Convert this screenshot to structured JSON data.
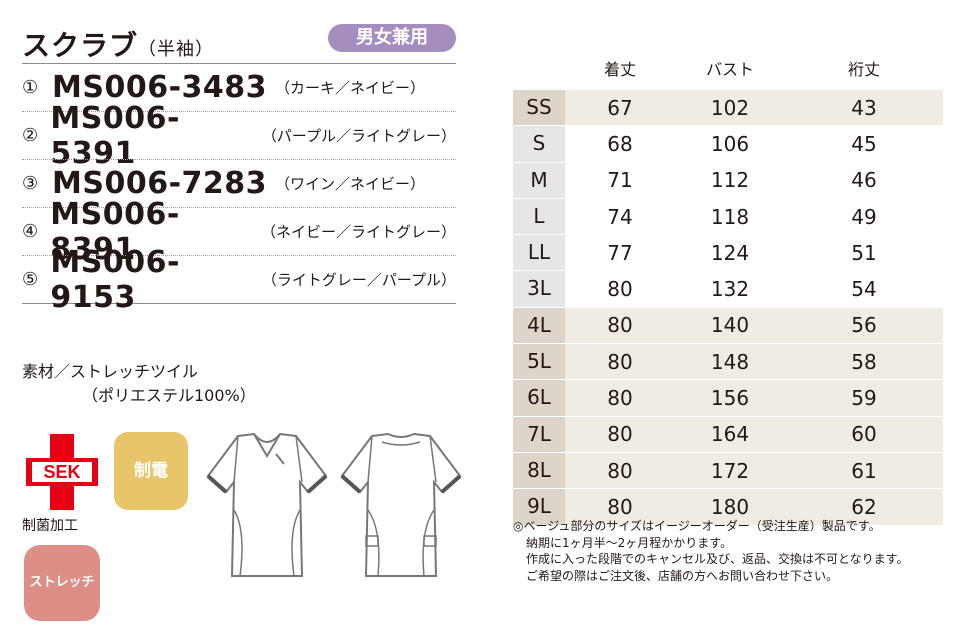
{
  "header": {
    "title": "スクラブ",
    "subtitle": "（半袖）",
    "badge": "男女兼用"
  },
  "models": [
    {
      "num": "①",
      "code": "MS006-3483",
      "color": "（カーキ／ネイビー）"
    },
    {
      "num": "②",
      "code": "MS006-5391",
      "color": "（パープル／ライトグレー）"
    },
    {
      "num": "③",
      "code": "MS006-7283",
      "color": "（ワイン／ネイビー）"
    },
    {
      "num": "④",
      "code": "MS006-8391",
      "color": "（ネイビー／ライトグレー）"
    },
    {
      "num": "⑤",
      "code": "MS006-9153",
      "color": "（ライトグレー／パープル）"
    }
  ],
  "material": {
    "line1": "素材／ストレッチツイル",
    "line2": "（ポリエステル100%）"
  },
  "badges": {
    "sek_text": "SEK",
    "sek_label": "制菌加工",
    "static": "制電",
    "stretch": "ストレッチ"
  },
  "size_table": {
    "headers": [
      "",
      "着丈",
      "バスト",
      "裄丈"
    ],
    "rows": [
      {
        "size": "SS",
        "length": "67",
        "bust": "102",
        "sleeve": "43",
        "beige": true
      },
      {
        "size": "S",
        "length": "68",
        "bust": "106",
        "sleeve": "45",
        "beige": false
      },
      {
        "size": "M",
        "length": "71",
        "bust": "112",
        "sleeve": "46",
        "beige": false
      },
      {
        "size": "L",
        "length": "74",
        "bust": "118",
        "sleeve": "49",
        "beige": false
      },
      {
        "size": "LL",
        "length": "77",
        "bust": "124",
        "sleeve": "51",
        "beige": false
      },
      {
        "size": "3L",
        "length": "80",
        "bust": "132",
        "sleeve": "54",
        "beige": false
      },
      {
        "size": "4L",
        "length": "80",
        "bust": "140",
        "sleeve": "56",
        "beige": true
      },
      {
        "size": "5L",
        "length": "80",
        "bust": "148",
        "sleeve": "58",
        "beige": true
      },
      {
        "size": "6L",
        "length": "80",
        "bust": "156",
        "sleeve": "59",
        "beige": true
      },
      {
        "size": "7L",
        "length": "80",
        "bust": "164",
        "sleeve": "60",
        "beige": true
      },
      {
        "size": "8L",
        "length": "80",
        "bust": "172",
        "sleeve": "61",
        "beige": true
      },
      {
        "size": "9L",
        "length": "80",
        "bust": "180",
        "sleeve": "62",
        "beige": true
      }
    ]
  },
  "notes": [
    "◎ベージュ部分のサイズはイージーオーダー（受注生産）製品です。",
    "納期に1ヶ月半〜2ヶ月程かかります。",
    "作成に入った段階でのキャンセル及び、返品、交換は不可となります。",
    "ご希望の際はご注文後、店舗の方へお問い合わせ下さい。"
  ],
  "colors": {
    "badge_purple": "#a68dbf",
    "static_yellow": "#e8c46b",
    "stretch_pink": "#dd8f86",
    "sek_red": "#e60012",
    "beige": "#f0ebe3",
    "gray": "#e6e6e6"
  }
}
